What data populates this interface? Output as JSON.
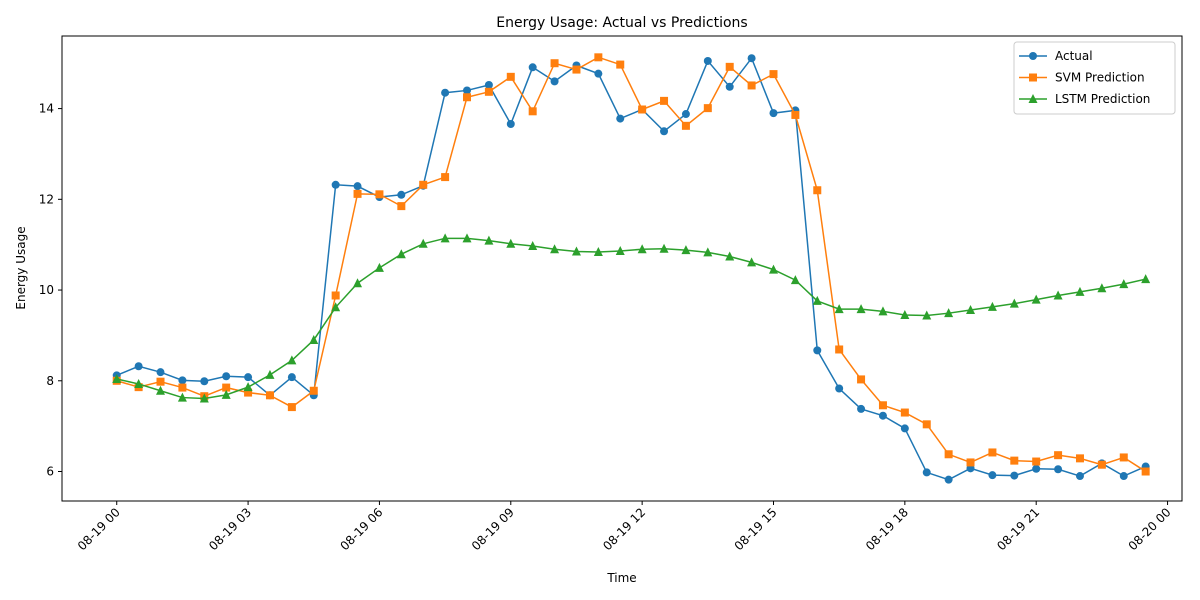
{
  "chart_data": {
    "type": "line",
    "title": "Energy Usage: Actual vs Predictions",
    "xlabel": "Time",
    "ylabel": "Energy Usage",
    "x_start": "2024-08-19 00:00",
    "x_step_minutes": 30,
    "xlim": [
      "08-18 22:45",
      "08-20 00:20"
    ],
    "ylim": [
      5.35,
      15.6
    ],
    "x_ticks": [
      "08-19 00",
      "08-19 03",
      "08-19 06",
      "08-19 09",
      "08-19 12",
      "08-19 15",
      "08-19 18",
      "08-19 21",
      "08-20 00"
    ],
    "y_ticks": [
      "6",
      "8",
      "10",
      "12",
      "14"
    ],
    "grid": false,
    "legend_position": "top-right",
    "series": [
      {
        "name": "Actual",
        "color": "#1f77b4",
        "marker": "circle",
        "values": [
          8.12,
          8.32,
          8.19,
          8.01,
          7.99,
          8.1,
          8.08,
          7.68,
          8.08,
          7.68,
          12.32,
          12.29,
          12.05,
          12.1,
          12.3,
          14.35,
          14.4,
          14.52,
          13.66,
          14.91,
          14.6,
          14.95,
          14.77,
          13.78,
          13.98,
          13.5,
          13.88,
          15.05,
          14.48,
          15.11,
          13.9,
          13.96,
          8.67,
          7.83,
          7.38,
          7.23,
          6.95,
          5.98,
          5.82,
          6.07,
          5.92,
          5.91,
          6.06,
          6.05,
          5.9,
          6.18,
          5.9,
          6.11
        ]
      },
      {
        "name": "SVM Prediction",
        "color": "#ff7f0e",
        "marker": "square",
        "values": [
          8.0,
          7.86,
          7.98,
          7.85,
          7.66,
          7.85,
          7.74,
          7.68,
          7.42,
          7.78,
          9.88,
          12.12,
          12.11,
          11.85,
          12.32,
          12.49,
          14.25,
          14.37,
          14.7,
          13.94,
          15.0,
          14.86,
          15.13,
          14.97,
          13.98,
          14.17,
          13.62,
          14.01,
          14.92,
          14.51,
          14.76,
          13.86,
          12.2,
          8.69,
          8.03,
          7.46,
          7.3,
          7.04,
          6.38,
          6.2,
          6.42,
          6.24,
          6.22,
          6.36,
          6.29,
          6.15,
          6.31,
          6.0
        ]
      },
      {
        "name": "LSTM Prediction",
        "color": "#2ca02c",
        "marker": "triangle",
        "values": [
          8.04,
          7.93,
          7.78,
          7.63,
          7.61,
          7.69,
          7.86,
          8.13,
          8.45,
          8.9,
          9.62,
          10.15,
          10.49,
          10.79,
          11.02,
          11.14,
          11.14,
          11.09,
          11.02,
          10.97,
          10.9,
          10.85,
          10.84,
          10.86,
          10.9,
          10.91,
          10.88,
          10.83,
          10.74,
          10.61,
          10.45,
          10.22,
          9.76,
          9.58,
          9.58,
          9.53,
          9.45,
          9.44,
          9.49,
          9.56,
          9.63,
          9.7,
          9.79,
          9.88,
          9.96,
          10.04,
          10.13,
          10.24
        ]
      }
    ]
  }
}
